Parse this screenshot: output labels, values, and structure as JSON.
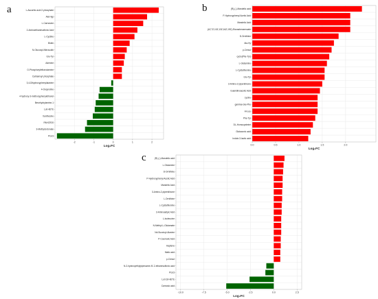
{
  "colors": {
    "positive": "#ff0000",
    "negative": "#006400"
  },
  "chart_data": [
    {
      "panel": "a",
      "type": "bar",
      "orientation": "horizontal",
      "xlabel": "Log₂FC",
      "xlim": [
        -3,
        2.6
      ],
      "xticks": [
        -2,
        -1,
        0,
        1,
        2
      ],
      "xtick_labels": [
        "-2",
        "-1",
        "0",
        "1",
        "2"
      ],
      "grid": true,
      "categories": [
        "L-Ascorbic acid 2-phosphate",
        "Ala-Hyp",
        "L-Carnosine",
        "2-Aminoethanesulfonic Acid",
        "L-Cystine",
        "Biotin",
        "N-Glucosyl-Nitrosodin",
        "Glu-Tyr",
        "Adenine",
        "O-Phosphorylethanolamine",
        "Carbamoyl phosphate",
        "3,4-Dihydroxyphenylalanine",
        "4-Oxoproline",
        "4-hydroxy-3-methoxyphenylethanol",
        "Benzhydrylamine-1",
        "Lut-HETE",
        "Xanthosine",
        "PAHCR20",
        "3-Methylcrotonate",
        "PGJ3"
      ],
      "values": [
        2.35,
        1.75,
        1.55,
        1.25,
        1.1,
        0.85,
        0.7,
        0.6,
        0.55,
        0.45,
        0.45,
        -0.1,
        -0.7,
        -0.75,
        -0.9,
        -0.95,
        -1.05,
        -1.35,
        -1.45,
        -2.9
      ]
    },
    {
      "panel": "b",
      "type": "bar",
      "orientation": "horizontal",
      "xlabel": "Log₂FC",
      "xlim": [
        0,
        2.65
      ],
      "xticks": [
        0,
        0.5,
        1,
        1.5,
        2
      ],
      "xtick_labels": [
        "0.0",
        "0.5",
        "1.0",
        "1.5",
        "2.0"
      ],
      "grid": true,
      "categories": [
        "(R)-(-)-Mandelic acid",
        "P-Hydroxyphenyl Acetic Acid",
        "Mandelic Acid",
        "(4Z,7Z,10Z,13Z,16Z,19Z)-Eicosahexaenoate",
        "D-Ornithine",
        "Ala-Hy",
        "p-Cresol",
        "cyclo(Phe-Tyr)",
        "L-Glutamine",
        "L-Cystathionine",
        "Glu-Tyr",
        "3-Amino-2-piperidinone",
        "Guanidinoacetic Acid",
        "Lysine",
        "gamma-Glu-Phe",
        "Hi-Leu",
        "Phe-Tyr",
        "DL-Homocysteine",
        "Glutaconic acid",
        "Indole-3-lactic acid"
      ],
      "values": [
        2.35,
        2.1,
        2.1,
        2.1,
        1.85,
        1.75,
        1.7,
        1.65,
        1.6,
        1.55,
        1.55,
        1.5,
        1.45,
        1.4,
        1.4,
        1.4,
        1.35,
        1.3,
        1.25,
        1.2
      ]
    },
    {
      "panel": "c",
      "type": "bar",
      "orientation": "horizontal",
      "xlabel": "Log₂FC",
      "xlim": [
        -10.5,
        3
      ],
      "xticks": [
        -10,
        -7.5,
        -5,
        -2.5,
        0,
        2.5
      ],
      "xtick_labels": [
        "-10.0",
        "-7.5",
        "-5.0",
        "-2.5",
        "0.0",
        "2.5"
      ],
      "grid": true,
      "categories": [
        "(R)-(-)-Mandelic acid",
        "L-Glutamine",
        "D-Ornithine",
        "P-Hydroxyphenyl Acetic Acid",
        "Mandelic Acid",
        "3-Amino-2-piperidinone",
        "L-Ornithine",
        "L-Cystathionine",
        "3-Aminoadipic Acid",
        "L-Isoleucine",
        "N-Methyl-L-Glutamate",
        "Nd-Succinyl-Alanine",
        "P-Coumaric Acid",
        "Haptene",
        "Malic acid",
        "p-Cresol",
        "N-2-hydroxyethylpiperazine-N'-2-ethanesulfonic acid",
        "PGJ3",
        "Lut-18-HETE",
        "Carnosic acid"
      ],
      "values": [
        1.15,
        1.05,
        1.0,
        0.95,
        0.95,
        0.9,
        0.9,
        0.85,
        0.85,
        0.8,
        0.8,
        0.8,
        0.75,
        0.75,
        0.7,
        0.7,
        -0.8,
        -0.9,
        -2.6,
        -5.1
      ]
    }
  ]
}
